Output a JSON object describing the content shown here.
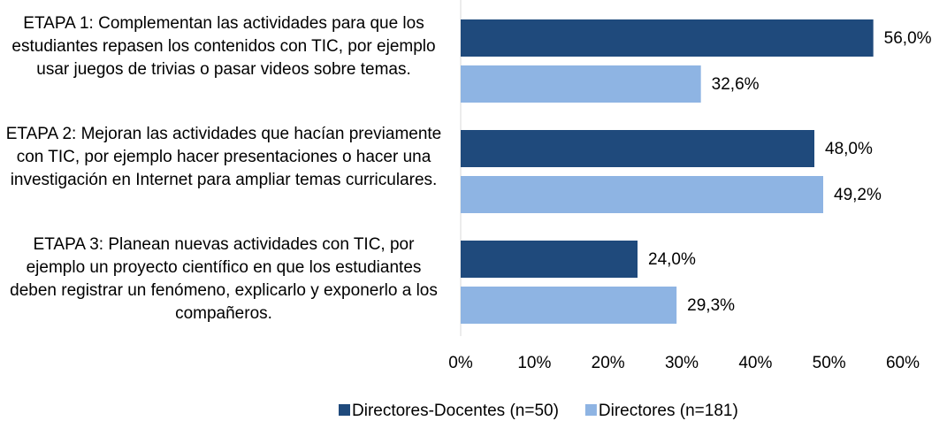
{
  "chart_data": {
    "type": "barh",
    "categories": [
      "ETAPA 1: Complementan las actividades para que los estudiantes repasen los contenidos con TIC, por ejemplo usar juegos de trivias o pasar videos sobre temas.",
      "ETAPA 2: Mejoran las actividades que hacían previamente con TIC, por ejemplo hacer presentaciones o hacer una investigación en Internet para ampliar temas curriculares.",
      "ETAPA 3: Planean nuevas actividades con TIC, por ejemplo un proyecto científico en que los estudiantes deben registrar un fenómeno, explicarlo y exponerlo a los compañeros."
    ],
    "series": [
      {
        "name": "Directores-Docentes (n=50)",
        "color": "#1f4a7c",
        "values": [
          56.0,
          48.0,
          24.0
        ],
        "value_labels": [
          "56,0%",
          "48,0%",
          "24,0%"
        ]
      },
      {
        "name": "Directores (n=181)",
        "color": "#8eb4e3",
        "values": [
          32.6,
          49.2,
          29.3
        ],
        "value_labels": [
          "32,6%",
          "49,2%",
          "29,3%"
        ]
      }
    ],
    "xlim": [
      0,
      60
    ],
    "xticks": [
      {
        "value": 0,
        "label": "0%"
      },
      {
        "value": 10,
        "label": "10%"
      },
      {
        "value": 20,
        "label": "20%"
      },
      {
        "value": 30,
        "label": "30%"
      },
      {
        "value": 40,
        "label": "40%"
      },
      {
        "value": 50,
        "label": "50%"
      },
      {
        "value": 60,
        "label": "60%"
      }
    ],
    "legend": "bottom"
  }
}
